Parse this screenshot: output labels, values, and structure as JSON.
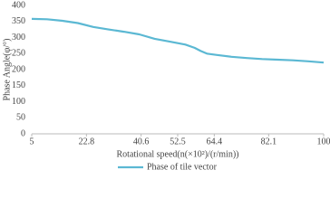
{
  "chart_data": {
    "type": "line",
    "x_label": "Rotational speed(n(×10²)/(r/min))",
    "y_label": "Phase Angle(φ/°)",
    "x": [
      5,
      10,
      15,
      20,
      25,
      30,
      35,
      40,
      45,
      50,
      55,
      58,
      60,
      62,
      65,
      70,
      75,
      80,
      85,
      90,
      95,
      100
    ],
    "series": [
      {
        "name": "Phase of tile vector",
        "color": "#5bb8d3",
        "values": [
          358,
          357,
          352,
          345,
          333,
          325,
          318,
          310,
          296,
          287,
          278,
          268,
          258,
          250,
          246,
          240,
          236,
          233,
          231,
          229,
          226,
          222
        ]
      }
    ],
    "xlim": [
      5,
      100
    ],
    "xticks": [
      5,
      22.8,
      40.6,
      52.5,
      64.4,
      82.1,
      100
    ],
    "ylim": [
      0,
      400
    ],
    "yticks": [
      0,
      50,
      100,
      150,
      200,
      250,
      300,
      350,
      400
    ],
    "grid": false,
    "legend": "bottom"
  }
}
